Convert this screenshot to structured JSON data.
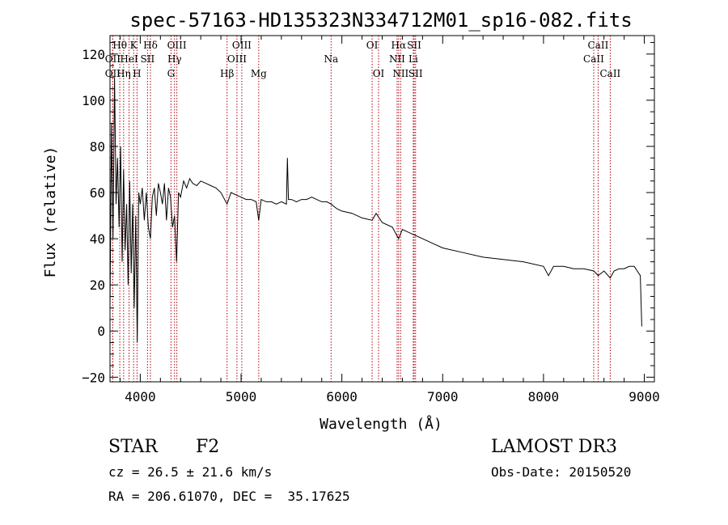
{
  "chart_data": {
    "type": "line",
    "title": "spec-57163-HD135323N334712M01_sp16-082.fits",
    "xlabel": "Wavelength (Å)",
    "ylabel": "Flux (relative)",
    "xlim": [
      3700,
      9100
    ],
    "ylim": [
      -22,
      128
    ],
    "xticks": [
      4000,
      5000,
      6000,
      7000,
      8000,
      9000
    ],
    "yticks": [
      -20,
      0,
      20,
      40,
      60,
      80,
      100,
      120
    ],
    "series": [
      {
        "name": "spectrum",
        "x": [
          3700,
          3715,
          3730,
          3745,
          3760,
          3775,
          3790,
          3805,
          3820,
          3835,
          3850,
          3865,
          3880,
          3895,
          3910,
          3925,
          3940,
          3955,
          3970,
          3985,
          4000,
          4020,
          4040,
          4060,
          4080,
          4101,
          4120,
          4140,
          4160,
          4180,
          4200,
          4220,
          4240,
          4260,
          4280,
          4300,
          4320,
          4340,
          4360,
          4380,
          4400,
          4430,
          4460,
          4490,
          4520,
          4560,
          4600,
          4650,
          4700,
          4750,
          4800,
          4861,
          4900,
          4950,
          5000,
          5050,
          5100,
          5150,
          5175,
          5200,
          5250,
          5300,
          5350,
          5400,
          5450,
          5460,
          5470,
          5500,
          5550,
          5600,
          5650,
          5700,
          5750,
          5800,
          5850,
          5893,
          5950,
          6000,
          6100,
          6200,
          6300,
          6340,
          6400,
          6500,
          6563,
          6600,
          6700,
          6800,
          6900,
          7000,
          7200,
          7400,
          7600,
          7800,
          8000,
          8050,
          8100,
          8200,
          8300,
          8400,
          8500,
          8542,
          8600,
          8662,
          8700,
          8750,
          8800,
          8850,
          8900,
          8930,
          8960,
          8975
        ],
        "values": [
          10,
          90,
          40,
          110,
          55,
          75,
          45,
          80,
          30,
          70,
          35,
          55,
          20,
          65,
          25,
          55,
          10,
          50,
          -5,
          60,
          55,
          62,
          48,
          60,
          45,
          40,
          58,
          62,
          50,
          64,
          60,
          55,
          64,
          48,
          62,
          58,
          45,
          50,
          30,
          60,
          58,
          65,
          62,
          66,
          64,
          63,
          65,
          64,
          63,
          62,
          60,
          55,
          60,
          59,
          58,
          57,
          57,
          56,
          48,
          57,
          56,
          56,
          55,
          56,
          55,
          75,
          57,
          57,
          56,
          57,
          57,
          58,
          57,
          56,
          56,
          55,
          53,
          52,
          51,
          49,
          48,
          51,
          47,
          45,
          40,
          44,
          42,
          40,
          38,
          36,
          34,
          32,
          31,
          30,
          28,
          24,
          28,
          28,
          27,
          27,
          26,
          24,
          26,
          23,
          26,
          27,
          27,
          28,
          28,
          26,
          24,
          2
        ]
      }
    ],
    "lines": [
      {
        "label": "Hθ",
        "x": 3797,
        "row": 0
      },
      {
        "label": "OII",
        "x": 3727,
        "row": 1
      },
      {
        "label": "OII",
        "x": 3727,
        "row": 2
      },
      {
        "label": "Hη",
        "x": 3835,
        "row": 2
      },
      {
        "label": "HeI",
        "x": 3889,
        "row": 1
      },
      {
        "label": "K",
        "x": 3934,
        "row": 0
      },
      {
        "label": "H",
        "x": 3968,
        "row": 2
      },
      {
        "label": "SII",
        "x": 4072,
        "row": 1
      },
      {
        "label": "Hδ",
        "x": 4101,
        "row": 0
      },
      {
        "label": "OIII",
        "x": 4363,
        "row": 0
      },
      {
        "label": "Hγ",
        "x": 4340,
        "row": 1
      },
      {
        "label": "G",
        "x": 4305,
        "row": 2
      },
      {
        "label": "Hβ",
        "x": 4861,
        "row": 2
      },
      {
        "label": "OIII",
        "x": 5007,
        "row": 0
      },
      {
        "label": "OIII",
        "x": 4959,
        "row": 1
      },
      {
        "label": "Mg",
        "x": 5175,
        "row": 2
      },
      {
        "label": "Na",
        "x": 5893,
        "row": 1
      },
      {
        "label": "OI",
        "x": 6300,
        "row": 0
      },
      {
        "label": "OI",
        "x": 6364,
        "row": 2
      },
      {
        "label": "Hα",
        "x": 6563,
        "row": 0
      },
      {
        "label": "NII",
        "x": 6548,
        "row": 1
      },
      {
        "label": "NII",
        "x": 6583,
        "row": 2
      },
      {
        "label": "SII",
        "x": 6717,
        "row": 0
      },
      {
        "label": "Li",
        "x": 6708,
        "row": 1
      },
      {
        "label": "SII",
        "x": 6731,
        "row": 2
      },
      {
        "label": "CaII",
        "x": 8542,
        "row": 0
      },
      {
        "label": "CaII",
        "x": 8498,
        "row": 1
      },
      {
        "label": "CaII",
        "x": 8662,
        "row": 2
      }
    ]
  },
  "info": {
    "class": "STAR",
    "subclass": "F2",
    "survey": "LAMOST DR3",
    "cz": "cz = 26.5 ± 21.6 km/s",
    "obs_date": "Obs-Date: 20150520",
    "coords": "RA = 206.61070, DEC =  35.17625"
  }
}
